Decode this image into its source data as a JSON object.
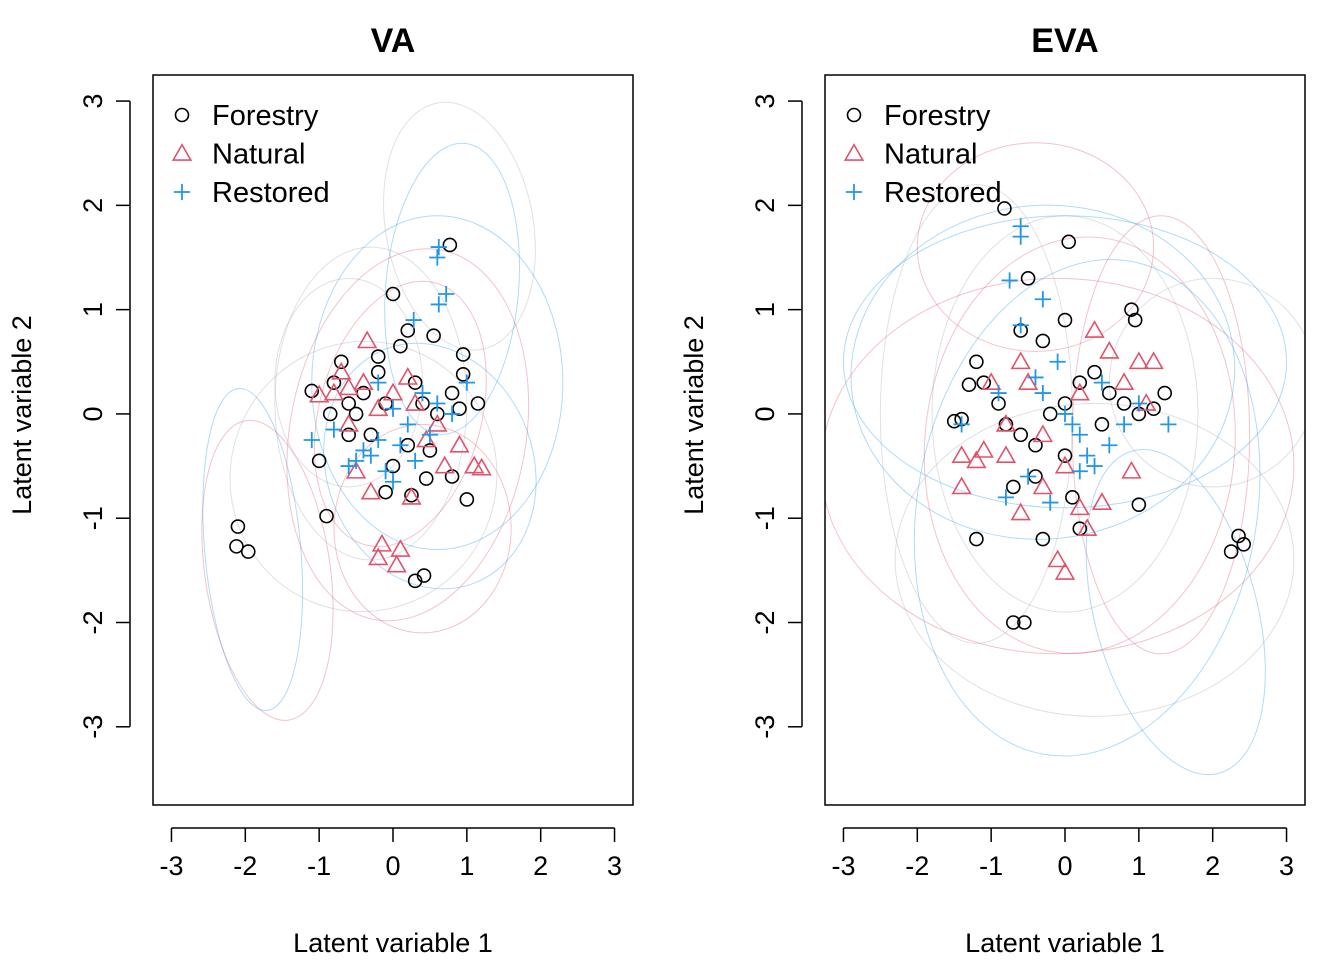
{
  "colors": {
    "Forestry": "#000000",
    "Natural": "#DF536B",
    "Restored": "#2297E6",
    "ellipse": "#a9a9b4"
  },
  "chart_data": [
    {
      "type": "scatter",
      "title": "VA",
      "xlabel": "Latent variable  1",
      "ylabel": "Latent variable  2",
      "xlim": [
        -3.25,
        3.25
      ],
      "ylim": [
        -3.75,
        3.25
      ],
      "xticks": [
        -3,
        -2,
        -1,
        0,
        1,
        2,
        3
      ],
      "yticks": [
        -3,
        -2,
        -1,
        0,
        1,
        2,
        3
      ],
      "legend": {
        "position": "top-left",
        "entries": [
          {
            "label": "Forestry",
            "marker": "circle"
          },
          {
            "label": "Natural",
            "marker": "triangle"
          },
          {
            "label": "Restored",
            "marker": "plus"
          }
        ]
      },
      "series": [
        {
          "name": "Forestry",
          "marker": "circle",
          "points": [
            [
              0.77,
              1.62
            ],
            [
              0.0,
              1.15
            ],
            [
              -2.1,
              -1.08
            ],
            [
              -2.12,
              -1.27
            ],
            [
              -1.96,
              -1.32
            ],
            [
              0.3,
              -1.6
            ],
            [
              0.42,
              -1.55
            ],
            [
              -0.9,
              -0.98
            ],
            [
              1.0,
              -0.82
            ],
            [
              0.45,
              -0.62
            ],
            [
              -1.0,
              -0.45
            ],
            [
              -0.6,
              0.1
            ],
            [
              -0.4,
              0.2
            ],
            [
              -0.7,
              0.5
            ],
            [
              0.2,
              0.8
            ],
            [
              0.55,
              0.75
            ],
            [
              0.95,
              0.57
            ],
            [
              0.95,
              0.38
            ],
            [
              1.15,
              0.1
            ],
            [
              -0.2,
              0.55
            ],
            [
              0.1,
              0.65
            ],
            [
              0.3,
              0.3
            ],
            [
              -0.1,
              0.1
            ],
            [
              0.6,
              0.0
            ],
            [
              0.8,
              0.2
            ],
            [
              -0.5,
              0.0
            ],
            [
              0.2,
              -0.3
            ],
            [
              -0.3,
              -0.2
            ],
            [
              0.0,
              -0.5
            ],
            [
              0.8,
              -0.6
            ],
            [
              -0.8,
              0.3
            ],
            [
              -0.2,
              0.4
            ],
            [
              0.4,
              0.1
            ],
            [
              -0.6,
              -0.2
            ],
            [
              0.5,
              -0.35
            ],
            [
              0.25,
              -0.78
            ],
            [
              -0.1,
              -0.75
            ],
            [
              0.9,
              0.05
            ],
            [
              -1.1,
              0.22
            ],
            [
              -0.85,
              0.0
            ]
          ]
        },
        {
          "name": "Natural",
          "marker": "triangle",
          "points": [
            [
              -0.35,
              0.7
            ],
            [
              -0.7,
              0.4
            ],
            [
              -0.8,
              0.2
            ],
            [
              -0.6,
              0.25
            ],
            [
              -0.4,
              0.3
            ],
            [
              -0.2,
              0.05
            ],
            [
              0.0,
              0.2
            ],
            [
              0.3,
              0.1
            ],
            [
              0.6,
              -0.1
            ],
            [
              0.9,
              -0.3
            ],
            [
              1.1,
              -0.5
            ],
            [
              0.7,
              -0.5
            ],
            [
              -0.5,
              -0.55
            ],
            [
              -0.3,
              -0.75
            ],
            [
              0.25,
              -0.8
            ],
            [
              -0.15,
              -1.25
            ],
            [
              0.1,
              -1.3
            ],
            [
              -0.2,
              -1.38
            ],
            [
              0.05,
              -1.45
            ],
            [
              -1.0,
              0.18
            ],
            [
              0.45,
              -0.25
            ],
            [
              -0.6,
              -0.1
            ],
            [
              0.2,
              0.35
            ],
            [
              1.2,
              -0.52
            ]
          ]
        },
        {
          "name": "Restored",
          "marker": "plus",
          "points": [
            [
              0.62,
              1.6
            ],
            [
              0.6,
              1.5
            ],
            [
              0.72,
              1.15
            ],
            [
              0.62,
              1.05
            ],
            [
              0.28,
              0.9
            ],
            [
              -0.2,
              -0.25
            ],
            [
              -0.3,
              -0.4
            ],
            [
              -0.1,
              -0.55
            ],
            [
              0.0,
              -0.65
            ],
            [
              0.1,
              -0.3
            ],
            [
              -0.5,
              -0.45
            ],
            [
              0.2,
              -0.1
            ],
            [
              0.4,
              0.2
            ],
            [
              0.8,
              0.0
            ],
            [
              1.0,
              0.3
            ],
            [
              -1.1,
              -0.25
            ],
            [
              -0.8,
              -0.15
            ],
            [
              -0.4,
              -0.35
            ],
            [
              0.3,
              -0.45
            ],
            [
              0.6,
              0.1
            ],
            [
              0.0,
              0.05
            ],
            [
              -0.2,
              0.3
            ],
            [
              0.5,
              -0.2
            ],
            [
              -0.6,
              -0.5
            ]
          ]
        }
      ]
    },
    {
      "type": "scatter",
      "title": "EVA",
      "xlabel": "Latent variable  1",
      "ylabel": "Latent variable  2",
      "xlim": [
        -3.25,
        3.25
      ],
      "ylim": [
        -3.75,
        3.25
      ],
      "xticks": [
        -3,
        -2,
        -1,
        0,
        1,
        2,
        3
      ],
      "yticks": [
        -3,
        -2,
        -1,
        0,
        1,
        2,
        3
      ],
      "legend": {
        "position": "top-left",
        "entries": [
          {
            "label": "Forestry",
            "marker": "circle"
          },
          {
            "label": "Natural",
            "marker": "triangle"
          },
          {
            "label": "Restored",
            "marker": "plus"
          }
        ]
      },
      "series": [
        {
          "name": "Forestry",
          "marker": "circle",
          "points": [
            [
              -0.82,
              1.97
            ],
            [
              0.05,
              1.65
            ],
            [
              -0.5,
              1.3
            ],
            [
              0.9,
              1.0
            ],
            [
              0.95,
              0.9
            ],
            [
              0.0,
              0.9
            ],
            [
              -0.6,
              0.8
            ],
            [
              -0.3,
              0.7
            ],
            [
              -1.2,
              0.5
            ],
            [
              -1.1,
              0.3
            ],
            [
              -1.3,
              0.28
            ],
            [
              -1.4,
              -0.05
            ],
            [
              -1.5,
              -0.07
            ],
            [
              -0.8,
              -0.1
            ],
            [
              -0.6,
              -0.2
            ],
            [
              -0.4,
              -0.3
            ],
            [
              -0.2,
              0.0
            ],
            [
              0.0,
              0.1
            ],
            [
              0.2,
              0.3
            ],
            [
              0.4,
              0.4
            ],
            [
              0.6,
              0.2
            ],
            [
              0.8,
              0.1
            ],
            [
              1.0,
              0.0
            ],
            [
              1.2,
              0.05
            ],
            [
              1.35,
              0.2
            ],
            [
              -0.7,
              -0.7
            ],
            [
              -0.4,
              -0.6
            ],
            [
              0.1,
              -0.8
            ],
            [
              0.2,
              -1.1
            ],
            [
              -0.3,
              -1.2
            ],
            [
              1.0,
              -0.87
            ],
            [
              -1.2,
              -1.2
            ],
            [
              -0.7,
              -2.0
            ],
            [
              -0.55,
              -2.0
            ],
            [
              2.35,
              -1.17
            ],
            [
              2.42,
              -1.25
            ],
            [
              2.25,
              -1.32
            ],
            [
              0.0,
              -0.4
            ],
            [
              0.5,
              -0.1
            ],
            [
              -0.9,
              0.1
            ]
          ]
        },
        {
          "name": "Natural",
          "marker": "triangle",
          "points": [
            [
              -1.4,
              -0.7
            ],
            [
              -1.4,
              -0.4
            ],
            [
              -1.2,
              -0.45
            ],
            [
              -1.1,
              -0.35
            ],
            [
              -0.6,
              0.5
            ],
            [
              -0.5,
              0.3
            ],
            [
              -0.8,
              -0.4
            ],
            [
              -0.6,
              -0.95
            ],
            [
              -0.3,
              -0.7
            ],
            [
              0.0,
              -0.5
            ],
            [
              0.2,
              -0.9
            ],
            [
              0.3,
              -1.1
            ],
            [
              -0.1,
              -1.4
            ],
            [
              0.0,
              -1.52
            ],
            [
              0.4,
              0.8
            ],
            [
              0.6,
              0.6
            ],
            [
              0.8,
              0.3
            ],
            [
              1.0,
              0.5
            ],
            [
              1.2,
              0.5
            ],
            [
              1.1,
              0.1
            ],
            [
              0.9,
              -0.55
            ],
            [
              0.5,
              -0.85
            ],
            [
              -0.3,
              -0.2
            ],
            [
              -0.8,
              -0.1
            ],
            [
              0.2,
              0.2
            ],
            [
              -1.0,
              0.3
            ]
          ]
        },
        {
          "name": "Restored",
          "marker": "plus",
          "points": [
            [
              -0.6,
              1.8
            ],
            [
              -0.6,
              1.7
            ],
            [
              -0.75,
              1.28
            ],
            [
              -0.3,
              1.1
            ],
            [
              -0.6,
              0.85
            ],
            [
              -0.1,
              0.5
            ],
            [
              -0.3,
              0.2
            ],
            [
              0.0,
              0.0
            ],
            [
              0.2,
              -0.2
            ],
            [
              0.3,
              -0.4
            ],
            [
              0.4,
              -0.5
            ],
            [
              0.6,
              -0.3
            ],
            [
              0.8,
              -0.1
            ],
            [
              1.0,
              0.1
            ],
            [
              1.4,
              -0.1
            ],
            [
              -0.8,
              -0.8
            ],
            [
              -0.5,
              -0.6
            ],
            [
              -0.2,
              -0.85
            ],
            [
              0.1,
              -0.1
            ],
            [
              -1.4,
              -0.1
            ],
            [
              -0.9,
              0.2
            ],
            [
              0.5,
              0.3
            ],
            [
              0.2,
              -0.55
            ],
            [
              -0.4,
              0.35
            ]
          ]
        }
      ]
    }
  ]
}
